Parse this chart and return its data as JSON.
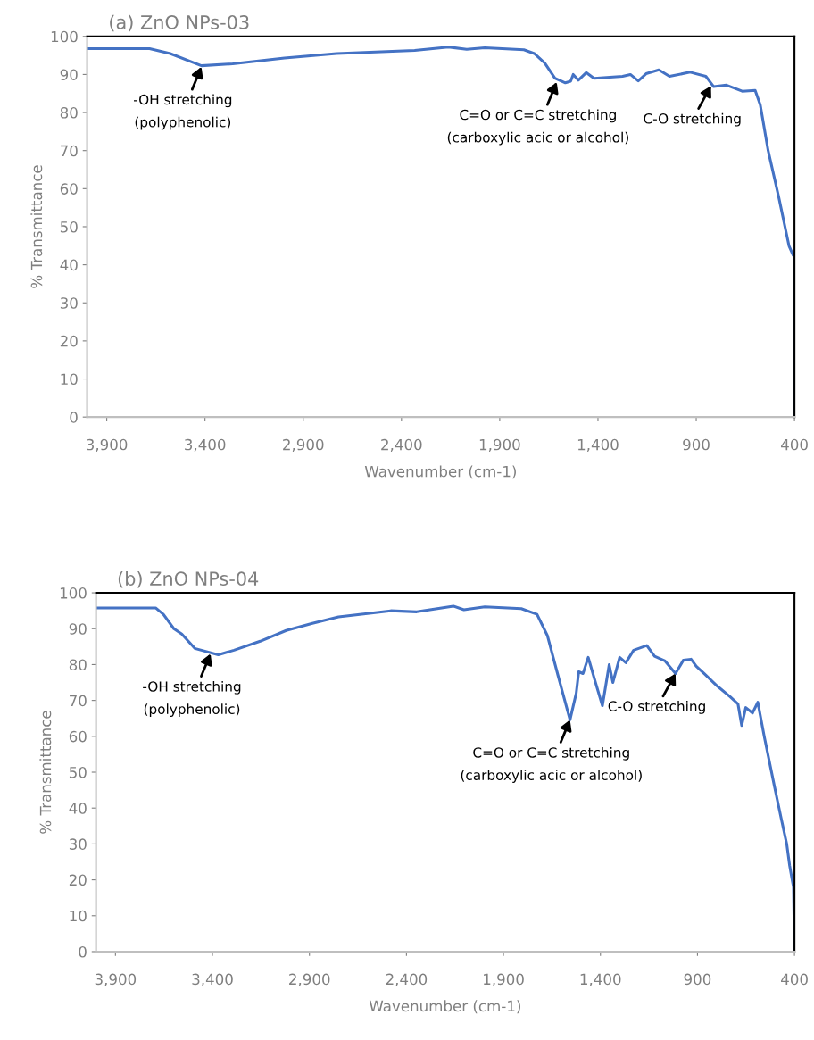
{
  "chart_data": [
    {
      "type": "line",
      "title": "(a) ZnO NPs-03",
      "xlabel": "Wavenumber (cm-1)",
      "ylabel": "% Transmittance",
      "x": [
        4000,
        3682,
        3577,
        3418,
        3259,
        2995,
        2730,
        2333,
        2161,
        2068,
        1976,
        1777,
        1724,
        1671,
        1619,
        1566,
        1539,
        1526,
        1500,
        1460,
        1420,
        1275,
        1235,
        1195,
        1155,
        1090,
        1036,
        931,
        851,
        811,
        746,
        666,
        600,
        574,
        534,
        481,
        428,
        407,
        402,
        400
      ],
      "series": [
        {
          "color": "#4472c4",
          "values": [
            96.8,
            96.8,
            95.5,
            92.3,
            92.8,
            94.3,
            95.5,
            96.3,
            97.2,
            96.6,
            97.0,
            96.5,
            95.5,
            93,
            89,
            87.8,
            88.2,
            90,
            88.5,
            90.5,
            89,
            89.5,
            90,
            88.3,
            90.2,
            91.2,
            89.5,
            90.6,
            89.5,
            86.8,
            87.2,
            85.6,
            85.8,
            82,
            70,
            58,
            45,
            42.5,
            43,
            0
          ]
        }
      ],
      "xlim": [
        4000,
        400
      ],
      "ylim": [
        0,
        100
      ],
      "xticks": [
        {
          "value": 3900,
          "label": "3,900"
        },
        {
          "value": 3400,
          "label": "3,400"
        },
        {
          "value": 2900,
          "label": "2,900"
        },
        {
          "value": 2400,
          "label": "2,400"
        },
        {
          "value": 1900,
          "label": "1,900"
        },
        {
          "value": 1400,
          "label": "1,400"
        },
        900,
        400
      ],
      "yticks": [
        0,
        10,
        20,
        30,
        40,
        50,
        60,
        70,
        80,
        90,
        100
      ],
      "annotations": [
        {
          "text": "-OH stretching\n(polyphenolic)",
          "x": 3418,
          "y": 92
        },
        {
          "text": "C=O or C=C stretching\n(carboxylic acic or alcohol)",
          "x": 1610,
          "y": 88
        },
        {
          "text": "C-O stretching",
          "x": 825,
          "y": 87
        }
      ]
    },
    {
      "type": "line",
      "title": "(b) ZnO NPs-04",
      "xlabel": "Wavenumber (cm-1)",
      "ylabel": "% Transmittance",
      "x": [
        4000,
        3693,
        3653,
        3599,
        3558,
        3491,
        3370,
        3289,
        3154,
        3020,
        2885,
        2750,
        2481,
        2347,
        2158,
        2104,
        1996,
        1808,
        1727,
        1673,
        1619,
        1557,
        1525,
        1512,
        1490,
        1463,
        1431,
        1390,
        1355,
        1336,
        1301,
        1269,
        1229,
        1161,
        1121,
        1067,
        1013,
        973,
        933,
        906,
        866,
        798,
        731,
        691,
        672,
        651,
        616,
        589,
        556,
        503,
        468,
        440,
        425,
        410,
        405,
        400
      ],
      "series": [
        {
          "color": "#4472c4",
          "values": [
            95.8,
            95.8,
            94,
            90,
            88.5,
            84.5,
            82.7,
            84,
            86.5,
            89.5,
            91.5,
            93.3,
            95,
            94.7,
            96.3,
            95.3,
            96.1,
            95.6,
            94,
            88,
            77,
            64.6,
            72,
            78,
            77.5,
            82,
            76,
            68.5,
            80,
            75,
            82,
            80.5,
            84,
            85.3,
            82.3,
            81,
            77.5,
            81.2,
            81.5,
            79.5,
            77.5,
            74,
            71,
            69,
            63,
            68,
            66.5,
            69.5,
            60,
            46,
            37,
            30,
            24,
            19.4,
            18,
            0
          ]
        }
      ],
      "xlim": [
        4000,
        400
      ],
      "ylim": [
        0,
        100
      ],
      "xticks": [
        {
          "value": 3900,
          "label": "3,900"
        },
        {
          "value": 3400,
          "label": "3,400"
        },
        {
          "value": 2900,
          "label": "2,900"
        },
        {
          "value": 2400,
          "label": "2,400"
        },
        {
          "value": 1900,
          "label": "1,900"
        },
        {
          "value": 1400,
          "label": "1,400"
        },
        900,
        400
      ],
      "yticks": [
        0,
        10,
        20,
        30,
        40,
        50,
        60,
        70,
        80,
        90,
        100
      ],
      "annotations": [
        {
          "text": "-OH stretching\n(polyphenolic)",
          "x": 3410,
          "y": 83
        },
        {
          "text": "C=O or C=C stretching\n(carboxylic acic or alcohol)",
          "x": 1557,
          "y": 64.6
        },
        {
          "text": "C-O stretching",
          "x": 1013,
          "y": 77.5
        }
      ]
    }
  ]
}
